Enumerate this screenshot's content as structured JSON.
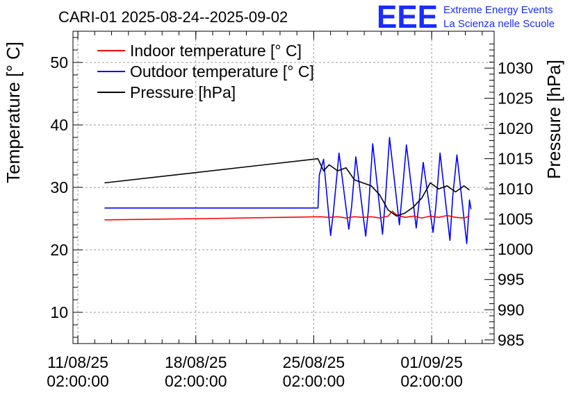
{
  "chart_data": {
    "type": "line",
    "title": "CARI-01 2025-08-24--2025-09-02",
    "ylabel": "Temperature [° C]",
    "y2label": "Pressure [hPa]",
    "xlabel": "",
    "grid": true,
    "legend_position": "top-left",
    "xlim": [
      "2025-08-10 19:00",
      "2025-09-04 19:00"
    ],
    "ylim": [
      5,
      55
    ],
    "y2lim": [
      984.4,
      1036.1
    ],
    "x_ticks": [
      {
        "date": "2025-08-11 02:00",
        "line1": "11/08/25",
        "line2": "02:00:00"
      },
      {
        "date": "2025-08-18 02:00",
        "line1": "18/08/25",
        "line2": "02:00:00"
      },
      {
        "date": "2025-08-25 02:00",
        "line1": "25/08/25",
        "line2": "02:00:00"
      },
      {
        "date": "2025-09-01 02:00",
        "line1": "01/09/25",
        "line2": "02:00:00"
      }
    ],
    "y_ticks": [
      10,
      20,
      30,
      40,
      50
    ],
    "y2_ticks": [
      985,
      990,
      995,
      1000,
      1005,
      1010,
      1015,
      1020,
      1025,
      1030
    ],
    "series": [
      {
        "name": "Indoor temperature [° C]",
        "color": "#ff0000",
        "axis": "left",
        "x": [
          "2025-08-12 16:00",
          "2025-08-18 12:00",
          "2025-08-25 12:00",
          "2025-08-26 00:00",
          "2025-08-26 12:00",
          "2025-08-27 00:00",
          "2025-08-27 12:00",
          "2025-08-28 00:00",
          "2025-08-28 12:00",
          "2025-08-29 00:00",
          "2025-08-29 12:00",
          "2025-08-29 18:00",
          "2025-08-30 00:00",
          "2025-08-30 12:00",
          "2025-08-31 00:00",
          "2025-08-31 12:00",
          "2025-09-01 00:00",
          "2025-09-01 12:00",
          "2025-09-02 00:00",
          "2025-09-02 12:00",
          "2025-09-03 00:00",
          "2025-09-03 08:00"
        ],
        "values": [
          24.8,
          25.0,
          25.3,
          25.2,
          25.3,
          25.1,
          25.3,
          25.2,
          25.3,
          25.1,
          25.4,
          26.2,
          25.6,
          25.2,
          25.4,
          25.1,
          25.4,
          25.2,
          25.5,
          25.2,
          25.1,
          25.4
        ]
      },
      {
        "name": "Outdoor temperature [° C]",
        "color": "#0000ff",
        "axis": "left",
        "x": [
          "2025-08-12 16:00",
          "2025-08-25 08:00",
          "2025-08-25 10:00",
          "2025-08-25 16:00",
          "2025-08-26 02:00",
          "2025-08-26 06:00",
          "2025-08-26 14:00",
          "2025-08-27 04:00",
          "2025-08-27 08:00",
          "2025-08-27 14:00",
          "2025-08-28 04:00",
          "2025-08-28 08:00",
          "2025-08-28 14:00",
          "2025-08-29 04:00",
          "2025-08-29 08:00",
          "2025-08-29 14:00",
          "2025-08-30 04:00",
          "2025-08-30 08:00",
          "2025-08-30 14:00",
          "2025-08-31 04:00",
          "2025-08-31 08:00",
          "2025-08-31 14:00",
          "2025-09-01 04:00",
          "2025-09-01 08:00",
          "2025-09-01 14:00",
          "2025-09-02 04:00",
          "2025-09-02 08:00",
          "2025-09-02 14:00",
          "2025-09-03 04:00",
          "2025-09-03 08:00",
          "2025-09-03 10:00"
        ],
        "values": [
          26.7,
          26.7,
          32.0,
          34.5,
          22.3,
          26.0,
          35.5,
          23.3,
          27.0,
          34.9,
          22.2,
          26.5,
          37.0,
          22.5,
          28.0,
          38.0,
          24.0,
          29.0,
          36.8,
          23.5,
          27.5,
          34.0,
          22.8,
          27.0,
          35.5,
          21.5,
          28.5,
          35.2,
          21.0,
          28.0,
          26.5
        ]
      },
      {
        "name": "Pressure [hPa]",
        "color": "#000000",
        "axis": "right",
        "x": [
          "2025-08-12 16:00",
          "2025-08-25 08:00",
          "2025-08-25 16:00",
          "2025-08-26 00:00",
          "2025-08-26 12:00",
          "2025-08-27 00:00",
          "2025-08-27 12:00",
          "2025-08-28 00:00",
          "2025-08-28 12:00",
          "2025-08-29 00:00",
          "2025-08-29 12:00",
          "2025-08-30 00:00",
          "2025-08-30 12:00",
          "2025-08-31 00:00",
          "2025-08-31 12:00",
          "2025-09-01 00:00",
          "2025-09-01 12:00",
          "2025-09-02 00:00",
          "2025-09-02 12:00",
          "2025-09-03 00:00",
          "2025-09-03 08:00"
        ],
        "values": [
          1011.0,
          1015.0,
          1013.0,
          1014.0,
          1013.0,
          1013.5,
          1011.5,
          1011.0,
          1010.5,
          1009.0,
          1006.5,
          1005.5,
          1006.0,
          1007.0,
          1008.5,
          1011.0,
          1010.0,
          1010.5,
          1009.5,
          1010.5,
          1009.8
        ]
      }
    ]
  },
  "logo": {
    "mark": "EEE",
    "line1": "Extreme Energy Events",
    "line2": "La Scienza nelle Scuole",
    "color": "#1a2cff"
  }
}
